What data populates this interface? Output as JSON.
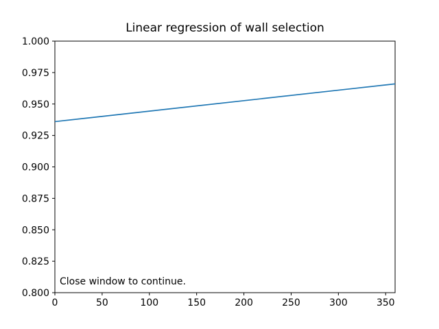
{
  "chart_data": {
    "type": "line",
    "title": "Linear regression of wall selection",
    "xlabel": "",
    "ylabel": "",
    "x": [
      0,
      360
    ],
    "y": [
      0.936,
      0.966
    ],
    "xlim": [
      0,
      360
    ],
    "ylim": [
      0.8,
      1.0
    ],
    "xticks": [
      "0",
      "50",
      "100",
      "150",
      "200",
      "250",
      "300",
      "350"
    ],
    "yticks": [
      "0.800",
      "0.825",
      "0.850",
      "0.875",
      "0.900",
      "0.925",
      "0.950",
      "0.975",
      "1.000"
    ],
    "grid": false,
    "legend": null,
    "line_color": "#1f77b4",
    "axis_color": "#000000",
    "background_color": "#ffffff",
    "annotation": {
      "text": "Close window to continue.",
      "x": 5,
      "y": 0.807
    }
  }
}
